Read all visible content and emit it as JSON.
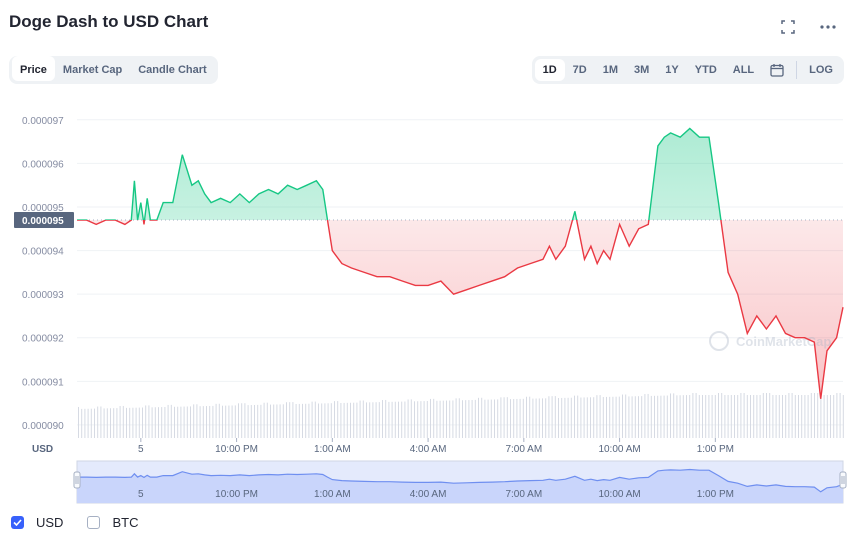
{
  "header": {
    "title": "Doge Dash to USD Chart"
  },
  "icons": {
    "fullscreen": "fullscreen-icon",
    "more": "more-horizontal-icon",
    "calendar": "calendar-icon"
  },
  "tabs": [
    {
      "label": "Price",
      "active": true
    },
    {
      "label": "Market Cap",
      "active": false
    },
    {
      "label": "Candle Chart",
      "active": false
    }
  ],
  "ranges": [
    {
      "label": "1D",
      "active": true
    },
    {
      "label": "7D",
      "active": false
    },
    {
      "label": "1M",
      "active": false
    },
    {
      "label": "3M",
      "active": false
    },
    {
      "label": "1Y",
      "active": false
    },
    {
      "label": "YTD",
      "active": false
    },
    {
      "label": "ALL",
      "active": false
    }
  ],
  "log_label": "LOG",
  "currency_label": "USD",
  "watermark": "CoinMarketCap",
  "legend": [
    {
      "label": "USD",
      "checked": true
    },
    {
      "label": "BTC",
      "checked": false
    }
  ],
  "colors": {
    "up": "#16c784",
    "down": "#ea3943",
    "accent": "#3861fb",
    "navigator": "#6f8ff0"
  },
  "chart_data": {
    "type": "line",
    "title": "Doge Dash to USD Chart",
    "ylabel": "USD",
    "ylim": [
      8.97e-05,
      9.75e-05
    ],
    "y_ticks": [
      "0.000097",
      "0.000096",
      "0.000095",
      "0.000094",
      "0.000093",
      "0.000092",
      "0.000091",
      "0.000090"
    ],
    "reference_price": 9.47e-05,
    "reference_label": "0.000095",
    "x_ticks": [
      "5",
      "10:00 PM",
      "1:00 AM",
      "4:00 AM",
      "7:00 AM",
      "10:00 AM",
      "1:00 PM"
    ],
    "x_range_hours": [
      0,
      24
    ],
    "x_tick_hours": [
      2.0,
      5.0,
      8.0,
      11.0,
      14.0,
      17.0,
      20.0
    ],
    "series": [
      {
        "x": [
          0.0,
          0.3,
          0.6,
          0.9,
          1.2,
          1.5,
          1.7,
          1.8,
          1.9,
          2.0,
          2.1,
          2.2,
          2.3,
          2.5,
          2.7,
          3.0,
          3.3,
          3.6,
          3.8,
          4.0,
          4.2,
          4.5,
          4.8,
          5.1,
          5.4,
          5.7,
          6.0,
          6.3,
          6.6,
          6.9,
          7.2,
          7.5,
          7.7,
          7.85,
          8.0,
          8.3,
          8.6,
          9.0,
          9.4,
          9.8,
          10.2,
          10.6,
          11.0,
          11.4,
          11.8,
          12.2,
          12.6,
          13.0,
          13.4,
          13.8,
          14.2,
          14.6,
          14.8,
          15.0,
          15.3,
          15.6,
          15.9,
          16.1,
          16.3,
          16.5,
          16.7,
          17.0,
          17.3,
          17.6,
          17.9,
          18.2,
          18.4,
          18.6,
          18.9,
          19.2,
          19.5,
          19.8,
          20.1,
          20.4,
          20.7,
          21.0,
          21.3,
          21.6,
          21.9,
          22.2,
          22.5,
          22.8,
          23.1,
          23.3,
          23.5,
          23.8,
          24.0
        ],
        "values": [
          9.47e-05,
          9.47e-05,
          9.46e-05,
          9.47e-05,
          9.47e-05,
          9.46e-05,
          9.47e-05,
          9.56e-05,
          9.47e-05,
          9.51e-05,
          9.46e-05,
          9.52e-05,
          9.47e-05,
          9.47e-05,
          9.51e-05,
          9.51e-05,
          9.62e-05,
          9.55e-05,
          9.56e-05,
          9.53e-05,
          9.51e-05,
          9.52e-05,
          9.51e-05,
          9.53e-05,
          9.51e-05,
          9.53e-05,
          9.54e-05,
          9.53e-05,
          9.55e-05,
          9.54e-05,
          9.55e-05,
          9.56e-05,
          9.54e-05,
          9.47e-05,
          9.4e-05,
          9.37e-05,
          9.36e-05,
          9.35e-05,
          9.34e-05,
          9.34e-05,
          9.33e-05,
          9.32e-05,
          9.32e-05,
          9.33e-05,
          9.3e-05,
          9.31e-05,
          9.32e-05,
          9.33e-05,
          9.34e-05,
          9.36e-05,
          9.37e-05,
          9.38e-05,
          9.41e-05,
          9.38e-05,
          9.41e-05,
          9.49e-05,
          9.38e-05,
          9.41e-05,
          9.37e-05,
          9.4e-05,
          9.38e-05,
          9.46e-05,
          9.41e-05,
          9.45e-05,
          9.46e-05,
          9.64e-05,
          9.66e-05,
          9.67e-05,
          9.66e-05,
          9.68e-05,
          9.66e-05,
          9.66e-05,
          9.51e-05,
          9.35e-05,
          9.3e-05,
          9.21e-05,
          9.25e-05,
          9.22e-05,
          9.25e-05,
          9.21e-05,
          9.2e-05,
          9.2e-05,
          9.19e-05,
          9.06e-05,
          9.17e-05,
          9.2e-05,
          9.27e-05
        ]
      }
    ]
  }
}
